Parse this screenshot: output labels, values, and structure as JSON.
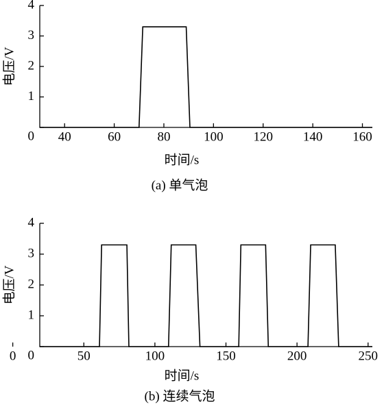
{
  "chart_data": [
    {
      "type": "line",
      "xlabel": "时间/s",
      "ylabel": "电压/V",
      "caption": "(a) 单气泡",
      "x": [
        30,
        70,
        71.5,
        89,
        90.5,
        164
      ],
      "values": [
        0,
        0,
        3.3,
        3.3,
        0,
        0
      ],
      "color": "#000000",
      "xlim": [
        30,
        164
      ],
      "ylim": [
        0,
        4
      ],
      "xticks": [
        40,
        60,
        80,
        100,
        120,
        140,
        160
      ],
      "yticks": [
        0,
        1,
        2,
        3,
        4
      ]
    },
    {
      "type": "line",
      "xlabel": "时间/s",
      "ylabel": "电压/V",
      "caption": "(b) 连续气泡",
      "x": [
        19,
        61,
        62.5,
        80.3,
        81.7,
        109.6,
        111.5,
        128.8,
        131.7,
        159,
        160.5,
        177.9,
        179.8,
        207.7,
        209.6,
        226.9,
        229.3,
        253
      ],
      "values": [
        0,
        0,
        3.3,
        3.3,
        0,
        0,
        3.3,
        3.3,
        0,
        0,
        3.3,
        3.3,
        0,
        0,
        3.3,
        3.3,
        0,
        0
      ],
      "color": "#000000",
      "xlim": [
        19,
        253
      ],
      "ylim": [
        0,
        4
      ],
      "xticks": [
        0,
        50,
        100,
        150,
        200,
        250
      ],
      "yticks": [
        0,
        1,
        2,
        3,
        4
      ]
    }
  ]
}
